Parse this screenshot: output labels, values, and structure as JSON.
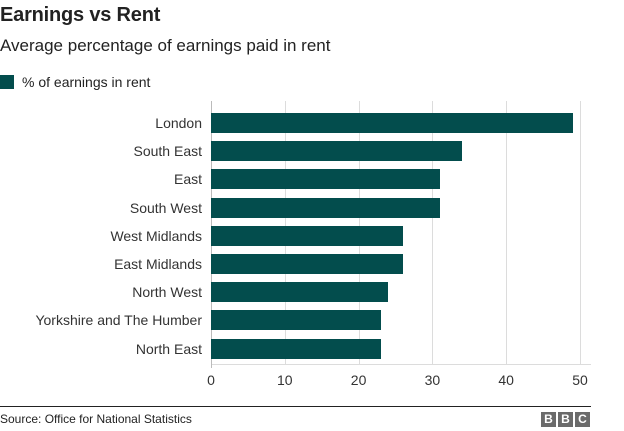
{
  "header": {
    "title": "Earnings vs Rent",
    "subtitle": "Average percentage of earnings paid in rent"
  },
  "legend": {
    "label": "% of earnings in rent",
    "color": "#034d4d"
  },
  "footer": {
    "source": "Source: Office for National Statistics",
    "logo": [
      "B",
      "B",
      "C"
    ]
  },
  "chart_data": {
    "type": "bar",
    "orientation": "horizontal",
    "title": "Earnings vs Rent",
    "subtitle": "Average percentage of earnings paid in rent",
    "xlabel": "",
    "ylabel": "",
    "categories": [
      "London",
      "South East",
      "East",
      "South West",
      "West Midlands",
      "East Midlands",
      "North West",
      "Yorkshire and The Humber",
      "North East"
    ],
    "series": [
      {
        "name": "% of earnings in rent",
        "color": "#034d4d",
        "values": [
          49,
          34,
          31,
          31,
          26,
          26,
          24,
          23,
          23
        ]
      }
    ],
    "xlim": [
      0,
      50
    ],
    "xticks": [
      "0",
      "10",
      "20",
      "30",
      "40",
      "50"
    ],
    "grid": true,
    "legend_position": "top-left"
  }
}
